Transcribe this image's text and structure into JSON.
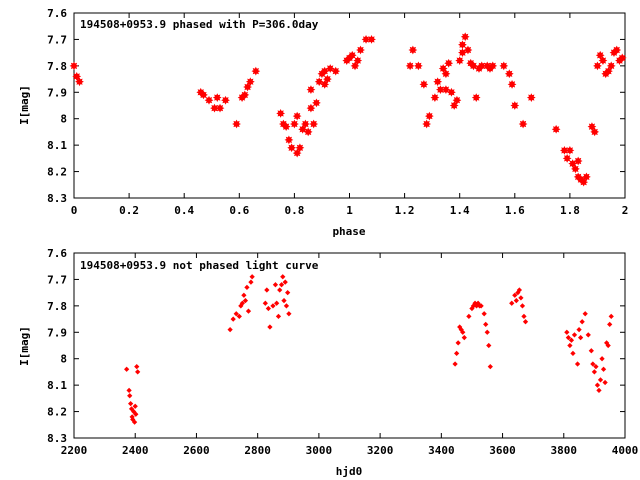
{
  "chart_data": [
    {
      "type": "scatter",
      "title": "194508+0953.9 phased with P=306.0day",
      "xlabel": "phase",
      "ylabel": "I[mag]",
      "xlim": [
        0,
        2
      ],
      "ylim": [
        8.3,
        7.6
      ],
      "y_inverted": true,
      "x_ticks": [
        "0",
        "0.2",
        "0.4",
        "0.6",
        "0.8",
        "1",
        "1.2",
        "1.4",
        "1.6",
        "1.8",
        "2"
      ],
      "x_tick_values": [
        0,
        0.2,
        0.4,
        0.6,
        0.8,
        1.0,
        1.2,
        1.4,
        1.6,
        1.8,
        2.0
      ],
      "y_ticks": [
        "7.6",
        "7.7",
        "7.8",
        "7.9",
        "8",
        "8.1",
        "8.2",
        "8.3"
      ],
      "y_tick_values": [
        7.6,
        7.7,
        7.8,
        7.9,
        8.0,
        8.1,
        8.2,
        8.3
      ],
      "grid": false,
      "marker": "star",
      "color": "#ff0000",
      "points": [
        [
          0.0,
          7.8
        ],
        [
          0.01,
          7.84
        ],
        [
          0.02,
          7.86
        ],
        [
          0.46,
          7.9
        ],
        [
          0.47,
          7.91
        ],
        [
          0.49,
          7.93
        ],
        [
          0.51,
          7.96
        ],
        [
          0.52,
          7.92
        ],
        [
          0.53,
          7.96
        ],
        [
          0.55,
          7.93
        ],
        [
          0.59,
          8.02
        ],
        [
          0.61,
          7.92
        ],
        [
          0.62,
          7.91
        ],
        [
          0.63,
          7.88
        ],
        [
          0.64,
          7.86
        ],
        [
          0.66,
          7.82
        ],
        [
          0.75,
          7.98
        ],
        [
          0.76,
          8.02
        ],
        [
          0.77,
          8.03
        ],
        [
          0.78,
          8.08
        ],
        [
          0.79,
          8.11
        ],
        [
          0.8,
          8.02
        ],
        [
          0.81,
          8.13
        ],
        [
          0.81,
          7.99
        ],
        [
          0.82,
          8.11
        ],
        [
          0.83,
          8.04
        ],
        [
          0.84,
          8.02
        ],
        [
          0.85,
          8.05
        ],
        [
          0.86,
          7.96
        ],
        [
          0.87,
          8.02
        ],
        [
          0.86,
          7.89
        ],
        [
          0.88,
          7.94
        ],
        [
          0.89,
          7.86
        ],
        [
          0.9,
          7.83
        ],
        [
          0.91,
          7.87
        ],
        [
          0.92,
          7.85
        ],
        [
          0.93,
          7.81
        ],
        [
          0.91,
          7.82
        ],
        [
          0.95,
          7.82
        ],
        [
          0.99,
          7.78
        ],
        [
          1.0,
          7.77
        ],
        [
          1.01,
          7.76
        ],
        [
          1.02,
          7.8
        ],
        [
          1.03,
          7.78
        ],
        [
          1.04,
          7.74
        ],
        [
          1.06,
          7.7
        ],
        [
          1.08,
          7.7
        ],
        [
          1.22,
          7.8
        ],
        [
          1.23,
          7.74
        ],
        [
          1.25,
          7.8
        ],
        [
          1.27,
          7.87
        ],
        [
          1.28,
          8.02
        ],
        [
          1.29,
          7.99
        ],
        [
          1.31,
          7.92
        ],
        [
          1.32,
          7.86
        ],
        [
          1.33,
          7.89
        ],
        [
          1.34,
          7.81
        ],
        [
          1.35,
          7.83
        ],
        [
          1.35,
          7.89
        ],
        [
          1.36,
          7.79
        ],
        [
          1.37,
          7.9
        ],
        [
          1.38,
          7.95
        ],
        [
          1.39,
          7.93
        ],
        [
          1.4,
          7.78
        ],
        [
          1.41,
          7.72
        ],
        [
          1.41,
          7.75
        ],
        [
          1.42,
          7.69
        ],
        [
          1.43,
          7.74
        ],
        [
          1.44,
          7.79
        ],
        [
          1.45,
          7.8
        ],
        [
          1.46,
          7.92
        ],
        [
          1.47,
          7.81
        ],
        [
          1.48,
          7.8
        ],
        [
          1.5,
          7.8
        ],
        [
          1.51,
          7.81
        ],
        [
          1.52,
          7.8
        ],
        [
          1.56,
          7.8
        ],
        [
          1.58,
          7.83
        ],
        [
          1.59,
          7.87
        ],
        [
          1.6,
          7.95
        ],
        [
          1.63,
          8.02
        ],
        [
          1.66,
          7.92
        ],
        [
          1.75,
          8.04
        ],
        [
          1.78,
          8.12
        ],
        [
          1.79,
          8.15
        ],
        [
          1.8,
          8.12
        ],
        [
          1.81,
          8.17
        ],
        [
          1.82,
          8.19
        ],
        [
          1.83,
          8.22
        ],
        [
          1.83,
          8.16
        ],
        [
          1.84,
          8.23
        ],
        [
          1.85,
          8.24
        ],
        [
          1.86,
          8.22
        ],
        [
          1.88,
          8.03
        ],
        [
          1.89,
          8.05
        ],
        [
          1.9,
          7.8
        ],
        [
          1.91,
          7.76
        ],
        [
          1.92,
          7.78
        ],
        [
          1.93,
          7.83
        ],
        [
          1.94,
          7.82
        ],
        [
          1.95,
          7.8
        ],
        [
          1.96,
          7.75
        ],
        [
          1.97,
          7.74
        ],
        [
          1.98,
          7.78
        ],
        [
          1.99,
          7.77
        ]
      ]
    },
    {
      "type": "scatter",
      "title": "194508+0953.9 not phased light curve",
      "xlabel": "hjd0",
      "ylabel": "I[mag]",
      "xlim": [
        2200,
        4000
      ],
      "ylim": [
        8.3,
        7.6
      ],
      "y_inverted": true,
      "x_ticks": [
        "2200",
        "2400",
        "2600",
        "2800",
        "3000",
        "3200",
        "3400",
        "3600",
        "3800",
        "4000"
      ],
      "x_tick_values": [
        2200,
        2400,
        2600,
        2800,
        3000,
        3200,
        3400,
        3600,
        3800,
        4000
      ],
      "y_ticks": [
        "7.6",
        "7.7",
        "7.8",
        "7.9",
        "8",
        "8.1",
        "8.2",
        "8.3"
      ],
      "y_tick_values": [
        7.6,
        7.7,
        7.8,
        7.9,
        8.0,
        8.1,
        8.2,
        8.3
      ],
      "grid": false,
      "marker": "diamond",
      "color": "#ff0000",
      "points": [
        [
          2372,
          8.04
        ],
        [
          2380,
          8.12
        ],
        [
          2382,
          8.14
        ],
        [
          2385,
          8.17
        ],
        [
          2388,
          8.19
        ],
        [
          2390,
          8.22
        ],
        [
          2392,
          8.23
        ],
        [
          2395,
          8.2
        ],
        [
          2398,
          8.24
        ],
        [
          2400,
          8.18
        ],
        [
          2402,
          8.21
        ],
        [
          2405,
          8.03
        ],
        [
          2408,
          8.05
        ],
        [
          2710,
          7.89
        ],
        [
          2720,
          7.85
        ],
        [
          2730,
          7.83
        ],
        [
          2740,
          7.84
        ],
        [
          2745,
          7.8
        ],
        [
          2750,
          7.79
        ],
        [
          2755,
          7.76
        ],
        [
          2760,
          7.78
        ],
        [
          2765,
          7.73
        ],
        [
          2770,
          7.82
        ],
        [
          2778,
          7.71
        ],
        [
          2782,
          7.69
        ],
        [
          2825,
          7.79
        ],
        [
          2830,
          7.74
        ],
        [
          2835,
          7.81
        ],
        [
          2840,
          7.88
        ],
        [
          2850,
          7.8
        ],
        [
          2858,
          7.72
        ],
        [
          2862,
          7.79
        ],
        [
          2868,
          7.84
        ],
        [
          2872,
          7.74
        ],
        [
          2878,
          7.72
        ],
        [
          2882,
          7.69
        ],
        [
          2886,
          7.78
        ],
        [
          2890,
          7.71
        ],
        [
          2894,
          7.8
        ],
        [
          2898,
          7.75
        ],
        [
          2902,
          7.83
        ],
        [
          3445,
          8.02
        ],
        [
          3450,
          7.98
        ],
        [
          3455,
          7.94
        ],
        [
          3460,
          7.88
        ],
        [
          3465,
          7.89
        ],
        [
          3470,
          7.9
        ],
        [
          3475,
          7.92
        ],
        [
          3490,
          7.84
        ],
        [
          3500,
          7.81
        ],
        [
          3505,
          7.8
        ],
        [
          3510,
          7.79
        ],
        [
          3515,
          7.8
        ],
        [
          3520,
          7.79
        ],
        [
          3525,
          7.8
        ],
        [
          3530,
          7.8
        ],
        [
          3540,
          7.83
        ],
        [
          3545,
          7.87
        ],
        [
          3550,
          7.9
        ],
        [
          3555,
          7.95
        ],
        [
          3560,
          8.03
        ],
        [
          3630,
          7.79
        ],
        [
          3640,
          7.76
        ],
        [
          3645,
          7.78
        ],
        [
          3650,
          7.75
        ],
        [
          3655,
          7.74
        ],
        [
          3660,
          7.77
        ],
        [
          3665,
          7.8
        ],
        [
          3670,
          7.84
        ],
        [
          3675,
          7.86
        ],
        [
          3810,
          7.9
        ],
        [
          3815,
          7.92
        ],
        [
          3820,
          7.95
        ],
        [
          3825,
          7.93
        ],
        [
          3830,
          7.98
        ],
        [
          3835,
          7.91
        ],
        [
          3845,
          8.02
        ],
        [
          3850,
          7.89
        ],
        [
          3855,
          7.92
        ],
        [
          3860,
          7.86
        ],
        [
          3870,
          7.83
        ],
        [
          3880,
          7.91
        ],
        [
          3890,
          7.97
        ],
        [
          3895,
          8.02
        ],
        [
          3900,
          8.05
        ],
        [
          3905,
          8.03
        ],
        [
          3910,
          8.1
        ],
        [
          3915,
          8.12
        ],
        [
          3920,
          8.08
        ],
        [
          3925,
          8.0
        ],
        [
          3930,
          8.04
        ],
        [
          3935,
          8.09
        ],
        [
          3940,
          7.94
        ],
        [
          3945,
          7.95
        ],
        [
          3950,
          7.87
        ],
        [
          3955,
          7.84
        ]
      ]
    }
  ]
}
